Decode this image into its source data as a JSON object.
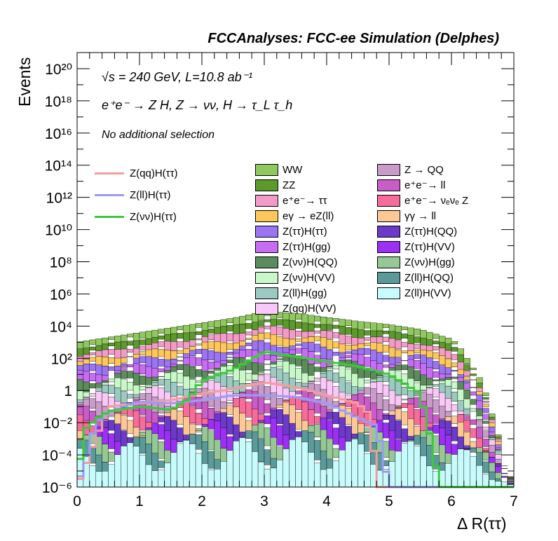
{
  "header": "FCCAnalyses: FCC-ee Simulation (Delphes)",
  "annotations": {
    "energy_lumi": "√s = 240 GeV, L=10.8 ab⁻¹",
    "process": "e⁺e⁻ → Z H, Z → νν, H → τ_L τ_h",
    "selection": "No additional selection"
  },
  "chart_data": {
    "type": "area",
    "x_edges_range": [
      0,
      7
    ],
    "n_bins": 70,
    "xlabel": "Δ R(ττ)",
    "ylabel": "Events",
    "xlim": [
      0,
      7
    ],
    "ylim": [
      1e-06,
      1e+21
    ],
    "log_y": true,
    "x_ticks": [
      "0",
      "1",
      "2",
      "3",
      "4",
      "5",
      "6",
      "7"
    ],
    "y_ticks": [
      "10⁻⁶",
      "10⁻⁴",
      "10⁻²",
      "1",
      "10²",
      "10⁴",
      "10⁶",
      "10⁸",
      "10¹⁰",
      "10¹²",
      "10¹⁴",
      "10¹⁶",
      "10¹⁸",
      "10²⁰"
    ],
    "stack_total_log10_profile": {
      "x": [
        0.0,
        0.5,
        1.0,
        2.0,
        2.5,
        3.0,
        3.5,
        4.0,
        4.5,
        5.0,
        5.5,
        6.0,
        6.1,
        6.5,
        7.0
      ],
      "log10_y": [
        3.0,
        3.3,
        3.6,
        4.2,
        4.5,
        4.9,
        4.8,
        4.55,
        4.3,
        4.1,
        3.8,
        3.2,
        2.9,
        0.5,
        -6.0
      ]
    },
    "background_stack": [
      {
        "name": "WW",
        "color": "#8fc85c"
      },
      {
        "name": "ZZ",
        "color": "#5c9a2c"
      },
      {
        "name": "e⁺e⁻→ ττ",
        "color": "#f49ac8"
      },
      {
        "name": "eγ → eZ(ll)",
        "color": "#fdc75a"
      },
      {
        "name": "Z(ττ)H(ττ)",
        "color": "#9b74f4"
      },
      {
        "name": "Z(ττ)H(gg)",
        "color": "#c86cf4"
      },
      {
        "name": "Z(νν)H(QQ)",
        "color": "#5b8c5b"
      },
      {
        "name": "Z(νν)H(VV)",
        "color": "#c8f8c8"
      },
      {
        "name": "Z(ll)H(gg)",
        "color": "#9bcac0"
      },
      {
        "name": "Z(qq)H(VV)",
        "color": "#fac8f8"
      },
      {
        "name": "Z → QQ",
        "color": "#c89bc8"
      },
      {
        "name": "e⁺e⁻→ ll",
        "color": "#c85cc8"
      },
      {
        "name": "e⁺e⁻→ νₑνₑ Z",
        "color": "#f86c9b"
      },
      {
        "name": "γγ → ll",
        "color": "#fcc896"
      },
      {
        "name": "Z(ττ)H(QQ)",
        "color": "#6c3ac8"
      },
      {
        "name": "Z(ττ)H(VV)",
        "color": "#9b30f4"
      },
      {
        "name": "Z(νν)H(gg)",
        "color": "#96c896"
      },
      {
        "name": "Z(ll)H(QQ)",
        "color": "#5b9a9a"
      },
      {
        "name": "Z(ll)H(VV)",
        "color": "#c8fcfc"
      }
    ],
    "signal_lines": [
      {
        "name": "Z(qq)H(ττ)",
        "color": "#f39c9c",
        "x": [
          0.0,
          0.5,
          1.0,
          1.5,
          2.0,
          2.5,
          3.0,
          3.5,
          4.0,
          4.5,
          4.7,
          4.8,
          5.0
        ],
        "log10_y": [
          -6,
          -1.0,
          -0.8,
          -0.6,
          -0.2,
          0.1,
          0.5,
          0.2,
          -0.3,
          -0.8,
          -1.5,
          -6,
          -6
        ]
      },
      {
        "name": "Z(ll)H(ττ)",
        "color": "#9b9bf3",
        "x": [
          0.0,
          0.3,
          0.5,
          1.0,
          1.5,
          2.0,
          2.5,
          3.0,
          3.5,
          4.0,
          4.5,
          4.8,
          5.0,
          5.2
        ],
        "log10_y": [
          -6,
          -2.0,
          -1.3,
          -0.7,
          -0.8,
          -0.6,
          -0.3,
          -0.3,
          -0.4,
          -0.8,
          -1.7,
          -2.2,
          -6,
          -6
        ]
      },
      {
        "name": "Z(νν)H(ττ)",
        "color": "#3cc83c",
        "x": [
          0.0,
          0.1,
          0.3,
          0.5,
          1.0,
          1.5,
          1.8,
          2.0,
          2.5,
          3.0,
          3.5,
          4.0,
          4.5,
          5.0,
          5.5,
          5.7,
          5.8
        ],
        "log10_y": [
          -6,
          -2.5,
          -1.8,
          -1.3,
          -1.0,
          -1.2,
          -0.5,
          0.6,
          1.3,
          2.4,
          2.1,
          1.8,
          1.5,
          1.0,
          -0.2,
          -3.5,
          -6
        ]
      }
    ]
  }
}
